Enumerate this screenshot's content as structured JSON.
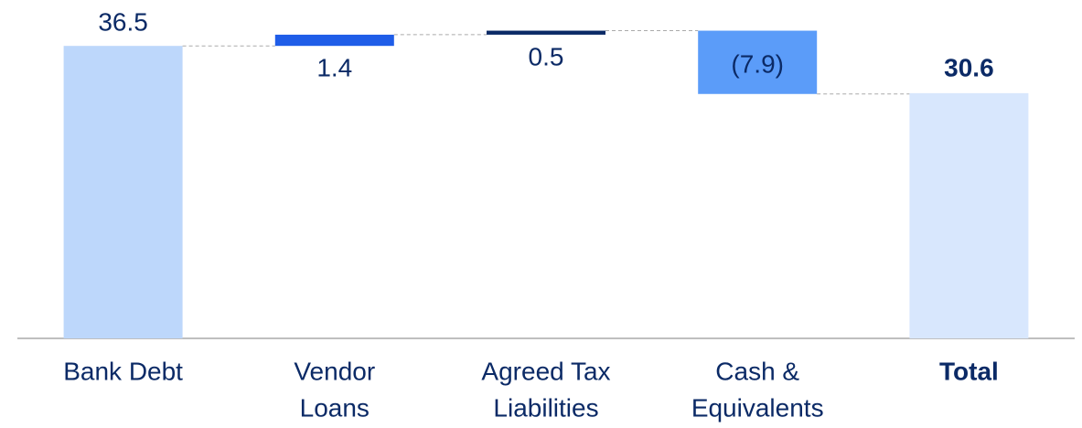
{
  "chart_data": {
    "type": "waterfall",
    "categories": [
      [
        "Bank Debt"
      ],
      [
        "Vendor",
        "Loans"
      ],
      [
        "Agreed Tax",
        "Liabilities"
      ],
      [
        "Cash &",
        "Equivalents"
      ],
      [
        "Total"
      ]
    ],
    "measures": [
      "absolute",
      "relative",
      "relative",
      "relative",
      "total"
    ],
    "values": [
      36.5,
      1.4,
      0.5,
      -7.9,
      30.6
    ],
    "value_labels": [
      "36.5",
      "1.4",
      "0.5",
      "(7.9)",
      "30.6"
    ],
    "colors": [
      "#bdd7fb",
      "#1f5de8",
      "#0b2a66",
      "#5b9cf9",
      "#d8e7fd"
    ],
    "ylim": [
      0,
      42
    ]
  }
}
